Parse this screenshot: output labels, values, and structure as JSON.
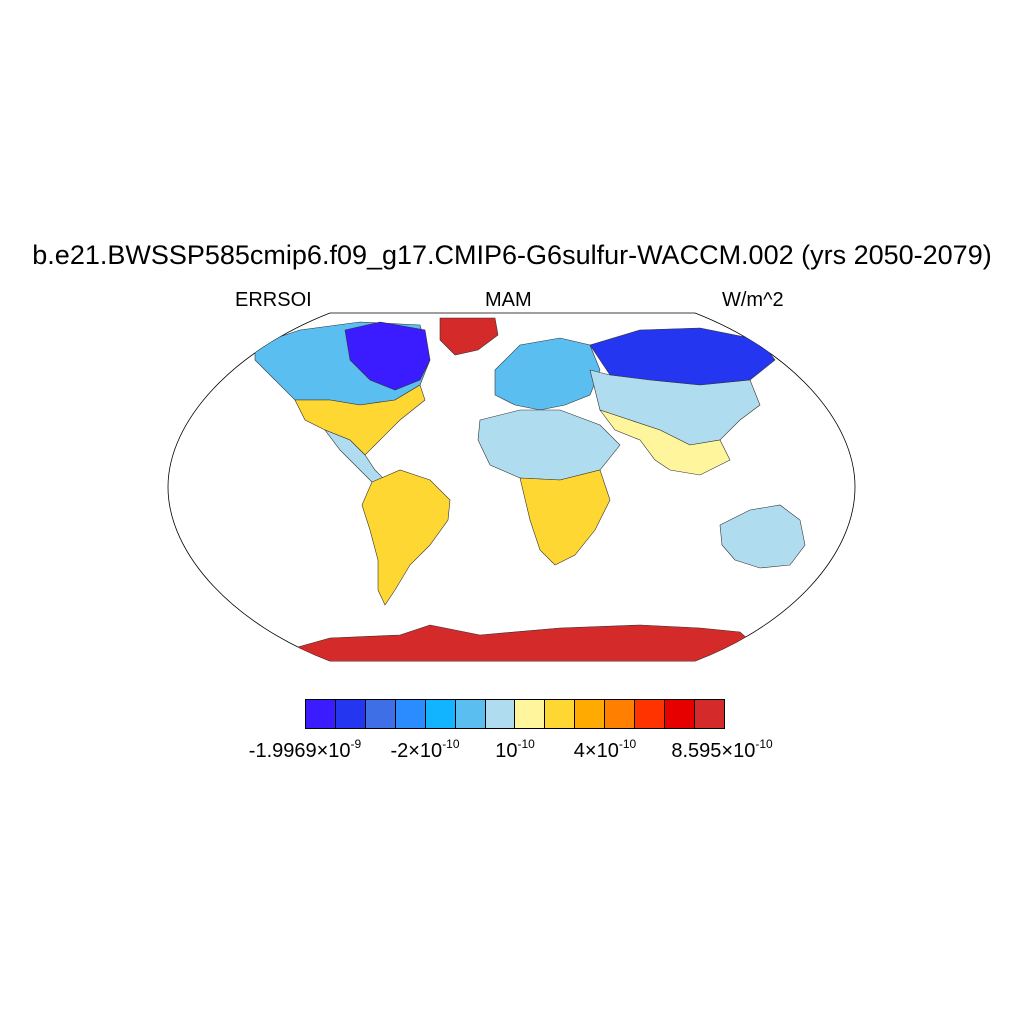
{
  "title": "b.e21.BWSSP585cmip6.f09_g17.CMIP6-G6sulfur-WACCM.002 (yrs 2050-2079)",
  "left_string": "ERRSOI",
  "center_string": "MAM",
  "right_string": "W/m^2",
  "colorbar": {
    "colors": [
      "#3b1bff",
      "#2536f0",
      "#3f6fe6",
      "#2a8cff",
      "#13b4ff",
      "#5bbef0",
      "#b0dcf0",
      "#fff59d",
      "#ffd732",
      "#ffaa00",
      "#ff7f00",
      "#ff3300",
      "#e60000",
      "#d42a2a"
    ],
    "labels": [
      {
        "base": "-1.9969×10",
        "exp": "-9"
      },
      {
        "base": "-2×10",
        "exp": "-10"
      },
      {
        "base": "10",
        "exp": "-10"
      },
      {
        "base": "4×10",
        "exp": "-10"
      },
      {
        "base": "8.595×10",
        "exp": "-10"
      }
    ]
  },
  "regions": [
    {
      "name": "north-america-north",
      "color": "#5bbef0"
    },
    {
      "name": "canada-arctic",
      "color": "#3b1bff"
    },
    {
      "name": "north-america-south",
      "color": "#ffd732"
    },
    {
      "name": "central-america",
      "color": "#b0dcf0"
    },
    {
      "name": "south-america",
      "color": "#ffd732"
    },
    {
      "name": "greenland",
      "color": "#d42a2a"
    },
    {
      "name": "europe",
      "color": "#5bbef0"
    },
    {
      "name": "siberia",
      "color": "#2536f0"
    },
    {
      "name": "asia",
      "color": "#b0dcf0"
    },
    {
      "name": "south-asia",
      "color": "#fff59d"
    },
    {
      "name": "africa-north",
      "color": "#b0dcf0"
    },
    {
      "name": "africa-south",
      "color": "#ffd732"
    },
    {
      "name": "australia",
      "color": "#b0dcf0"
    },
    {
      "name": "antarctica",
      "color": "#d42a2a"
    }
  ]
}
